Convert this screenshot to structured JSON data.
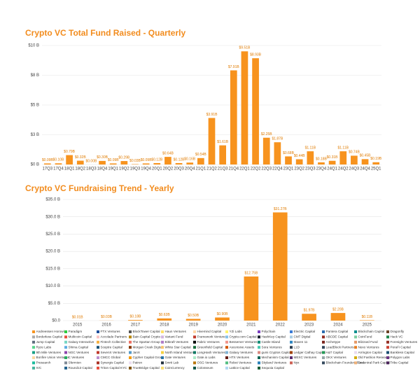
{
  "chart_data": [
    {
      "type": "bar",
      "title": "Crypto VC Total Fund Raised - Quarterly",
      "categories": [
        "17Q3",
        "17Q4",
        "18Q1",
        "18Q2",
        "18Q3",
        "18Q4",
        "19Q1",
        "19Q2",
        "19Q3",
        "19Q4",
        "20Q1",
        "20Q2",
        "20Q3",
        "20Q4",
        "21Q1",
        "21Q2",
        "21Q3",
        "21Q4",
        "22Q1",
        "22Q2",
        "22Q3",
        "22Q4",
        "23Q1",
        "23Q2",
        "23Q3",
        "23Q4",
        "24Q1",
        "24Q2",
        "24Q3",
        "24Q4",
        "25Q1"
      ],
      "values": [
        0.09,
        0.1,
        0.79,
        0.32,
        0.0,
        0.3,
        0.09,
        0.29,
        0.03,
        0.09,
        0.12,
        0.64,
        0.12,
        0.16,
        0.54,
        3.91,
        1.61,
        7.91,
        9.51,
        8.93,
        2.25,
        1.87,
        0.68,
        0.44,
        1.11,
        0.18,
        0.31,
        1.11,
        0.74,
        0.45,
        0.19
      ],
      "value_labels": [
        "$0.09B",
        "$0.10B",
        "$0.79B",
        "$0.32B",
        "$0.00B",
        "$0.30B",
        "$0.09B",
        "$0.29B",
        "$0.03B",
        "$0.09B",
        "$0.12B",
        "$0.64B",
        "$0.12B",
        "$0.16B",
        "$0.54B",
        "$3.91B",
        "$1.61B",
        "$7.91B",
        "$9.51B",
        "$8.93B",
        "$2.25B",
        "$1.87B",
        "$0.68B",
        "$0.44B",
        "$1.11B",
        "$0.18B",
        "$0.31B",
        "$1.11B",
        "$0.74B",
        "$0.45B",
        "$0.19B"
      ],
      "color": "#f7931e",
      "ylim": [
        0,
        10
      ],
      "yticks": [
        {
          "value": 0,
          "label": "$0 B"
        },
        {
          "value": 2.5,
          "label": "$3 B"
        },
        {
          "value": 5,
          "label": "$5 B"
        },
        {
          "value": 7.5,
          "label": "$8 B"
        },
        {
          "value": 10,
          "label": "$10 B"
        }
      ],
      "grid": true
    },
    {
      "type": "bar",
      "title": "Crypto VC Fundraising Trend - Yearly",
      "categories": [
        "2015",
        "2016",
        "2017",
        "2018",
        "2019",
        "2020",
        "2021",
        "2022",
        "2023",
        "2024",
        "2025"
      ],
      "values": [
        0.01,
        0.03,
        0.18,
        0.63,
        0.5,
        0.9,
        12.75,
        31.27,
        1.97,
        2.2,
        0.11
      ],
      "value_labels": [
        "$0.01B",
        "$0.03B",
        "$0.18B",
        "$0.63B",
        "$0.50B",
        "$0.90B",
        "$12.75B",
        "$31.27B",
        "$1.97B",
        "$2.20B",
        "$0.11B"
      ],
      "color": "#f7931e",
      "ylim": [
        0,
        35
      ],
      "yticks": [
        {
          "value": 0,
          "label": "$0.0"
        },
        {
          "value": 5,
          "label": "$5.0 B"
        },
        {
          "value": 10,
          "label": "$10.0 B"
        },
        {
          "value": 15,
          "label": "$15.0 B"
        },
        {
          "value": 20,
          "label": "$20.0 B"
        },
        {
          "value": 25,
          "label": "$25.0 B"
        },
        {
          "value": 30,
          "label": "$30.0 B"
        },
        {
          "value": 35,
          "label": "$35.0 B"
        }
      ],
      "grid": true,
      "legend": [
        {
          "name": "Andreessen Horowitz",
          "color": "#f7931e"
        },
        {
          "name": "Paradigm",
          "color": "#2ecc40"
        },
        {
          "name": "FTX Ventures",
          "color": "#1f4e9c"
        },
        {
          "name": "BlockTower Capital",
          "color": "#555"
        },
        {
          "name": "Haun Ventures",
          "color": "#ffe066"
        },
        {
          "name": "Hivemind Capital",
          "color": "#ffd7a8"
        },
        {
          "name": "YZi Labs",
          "color": "#fff36b"
        },
        {
          "name": "Polychain",
          "color": "#7a3fbf"
        },
        {
          "name": "Electric Capital",
          "color": "#3a7bd5"
        },
        {
          "name": "Pantera Capital",
          "color": "#2b6cb0"
        },
        {
          "name": "Blockchain Capital",
          "color": "#0b8f8f"
        },
        {
          "name": "Dragonfly",
          "color": "#6b4226"
        },
        {
          "name": "Borderless Capital",
          "color": "#aaa"
        },
        {
          "name": "Multicoin Capital",
          "color": "#e74c3c"
        },
        {
          "name": "Accolade Partners",
          "color": "#f9c2c2"
        },
        {
          "name": "Bain Capital Crypto",
          "color": "#b8860b"
        },
        {
          "name": "Variant Fund",
          "color": "#d2b4de"
        },
        {
          "name": "Framework Ventures",
          "color": "#c0392b"
        },
        {
          "name": "Crypto.com Capital",
          "color": "#85c1e9"
        },
        {
          "name": "HashKey Capital",
          "color": "#17202a"
        },
        {
          "name": "CMT Digital",
          "color": "#a9cce3"
        },
        {
          "name": "ABCDE Capital",
          "color": "#922b21"
        },
        {
          "name": "CoinFund",
          "color": "#7dcea0"
        },
        {
          "name": "Hack VC",
          "color": "#1e8449"
        },
        {
          "name": "Jump Capital",
          "color": "#5d6d7e"
        },
        {
          "name": "Galaxy Interactive",
          "color": "#76d7c4"
        },
        {
          "name": "Fintech Collective",
          "color": "#f5b041"
        },
        {
          "name": "The Spartan Group",
          "color": "#ec7063"
        },
        {
          "name": "Bitkraft Ventures",
          "color": "#af7ac5"
        },
        {
          "name": "Fabric Ventures",
          "color": "#000"
        },
        {
          "name": "Bessemer Ventures",
          "color": "#f1948a"
        },
        {
          "name": "Castle Island",
          "color": "#138d75"
        },
        {
          "name": "Maven 11",
          "color": "#2e86c1"
        },
        {
          "name": "Archetype",
          "color": "#7b241c"
        },
        {
          "name": "Blizzard Fund",
          "color": "#e59866"
        },
        {
          "name": "Foresight Ventures",
          "color": "#943126"
        },
        {
          "name": "Ryze Labs",
          "color": "#58d68d"
        },
        {
          "name": "Shima Capital",
          "color": "#5dade2"
        },
        {
          "name": "Sceptre Capital",
          "color": "#1a5276"
        },
        {
          "name": "Morgan Creek Digital",
          "color": "#873600"
        },
        {
          "name": "White Star Capital",
          "color": "#f8c471"
        },
        {
          "name": "Greenfield Capital",
          "color": "#196f3d"
        },
        {
          "name": "Ascensive Assets",
          "color": "#d35400"
        },
        {
          "name": "Sora Ventures",
          "color": "#48c9b0"
        },
        {
          "name": "L1D",
          "color": "#2c3e50"
        },
        {
          "name": "LeadBlock Partners",
          "color": "#34495e"
        },
        {
          "name": "Nexo Ventures",
          "color": "#e67e22"
        },
        {
          "name": "PeraFi Capital",
          "color": "#cb4335"
        },
        {
          "name": "9th Mile Ventures",
          "color": "#16a085"
        },
        {
          "name": "NGC Ventures",
          "color": "#8e44ad"
        },
        {
          "name": "SevenX Ventures",
          "color": "#c0392b"
        },
        {
          "name": "JanX",
          "color": "#5499c7"
        },
        {
          "name": "North Island Ventures",
          "color": "#f4d03f"
        },
        {
          "name": "LongHash Ventures",
          "color": "#117a65"
        },
        {
          "name": "Galaxy Ventures",
          "color": "#7fb3d5"
        },
        {
          "name": "gumi Cryptos Capital",
          "color": "#d98880"
        },
        {
          "name": "Ledger Cathay Capital",
          "color": "#a04000"
        },
        {
          "name": "A&T Capital",
          "color": "#239b56"
        },
        {
          "name": "Arrington Capital",
          "color": "#e8daef"
        },
        {
          "name": "Bankless Capital",
          "color": "#1b4f72"
        },
        {
          "name": "Bonfire Union Ventures",
          "color": "#fad7a0"
        },
        {
          "name": "C Ventures",
          "color": "#27ae60"
        },
        {
          "name": "CMCC Global",
          "color": "#bb8fce"
        },
        {
          "name": "Cypher Capital Group",
          "color": "#f39c12"
        },
        {
          "name": "Gate Ventures",
          "color": "#2874a6"
        },
        {
          "name": "Gate.io Labs",
          "color": "#abebc6"
        },
        {
          "name": "HTX Ventures",
          "color": "#641e16"
        },
        {
          "name": "Mechanism Capital",
          "color": "#0e6655"
        },
        {
          "name": "MEXC Ventures",
          "color": "#5b2c6f"
        },
        {
          "name": "OKX Ventures",
          "color": "#95a5a6"
        },
        {
          "name": "Old Fashion Research",
          "color": "#d4ac0d"
        },
        {
          "name": "Polygon Labs",
          "color": "#6c3483"
        },
        {
          "name": "Presearch",
          "color": "#1abc9c"
        },
        {
          "name": "Sfermion",
          "color": "#808b96"
        },
        {
          "name": "Synergis Capital",
          "color": "#a93226"
        },
        {
          "name": "Patron",
          "color": "#ebdef0"
        },
        {
          "name": "Smrti Lab",
          "color": "#212f3c"
        },
        {
          "name": "OSG Ventures",
          "color": "#b9770e"
        },
        {
          "name": "Robot Ventures",
          "color": "#52be80"
        },
        {
          "name": "Skyland Ventures",
          "color": "#2980b9"
        },
        {
          "name": "Nyx",
          "color": "#cd6155"
        },
        {
          "name": "Blockchain Founders Fund",
          "color": "#34495e"
        },
        {
          "name": "Decentral Park Capital",
          "color": "#f0b27a"
        },
        {
          "name": "Tribe Capital",
          "color": "#4a235a"
        },
        {
          "name": "IVC",
          "color": "#45b39d"
        },
        {
          "name": "Round13 Capital",
          "color": "#1f618d"
        },
        {
          "name": "Triton Capital KYC",
          "color": "#e74c3c"
        },
        {
          "name": "TrueBridge Capital",
          "color": "#7e5109"
        },
        {
          "name": "CoinCurrency",
          "color": "#f7dc6f"
        },
        {
          "name": "Colosseum",
          "color": "#0b5345"
        },
        {
          "name": "Lattice Capital",
          "color": "#aed6f1"
        },
        {
          "name": "Sequoia Capital",
          "color": "#145a32"
        }
      ]
    }
  ]
}
